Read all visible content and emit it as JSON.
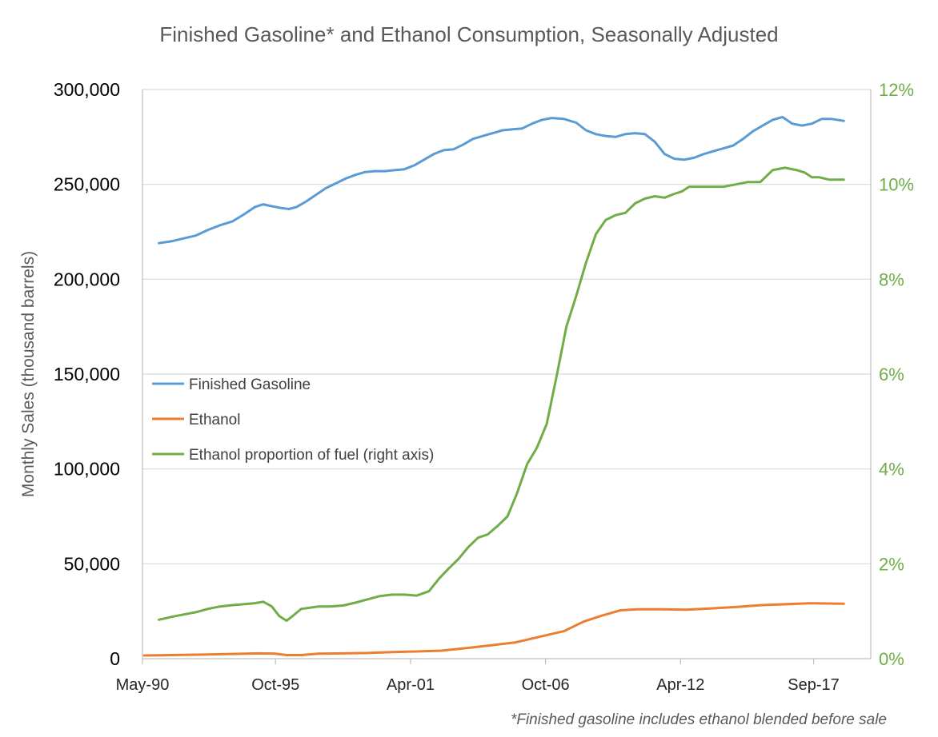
{
  "chart_data": {
    "type": "line",
    "title": "Finished Gasoline* and Ethanol Consumption, Seasonally Adjusted",
    "ylabel": "Monthly Sales (thousand barrels)",
    "y2label": "",
    "footnote": "*Finished gasoline includes ethanol blended before sale",
    "ylim": [
      0,
      300000
    ],
    "y2lim": [
      0,
      12
    ],
    "yticks": [
      "0",
      "50,000",
      "100,000",
      "150,000",
      "200,000",
      "250,000",
      "300,000"
    ],
    "y2ticks": [
      "0%",
      "2%",
      "4%",
      "6%",
      "8%",
      "10%",
      "12%"
    ],
    "xlim": [
      1990.33,
      2020.0
    ],
    "xticks": [
      {
        "label": "May-90",
        "x": 1990.33
      },
      {
        "label": "Oct-95",
        "x": 1995.75
      },
      {
        "label": "Apr-01",
        "x": 2001.25
      },
      {
        "label": "Oct-06",
        "x": 2006.75
      },
      {
        "label": "Apr-12",
        "x": 2012.25
      },
      {
        "label": "Sep-17",
        "x": 2017.67
      }
    ],
    "grid": true,
    "legend_position": "center-left",
    "colors": {
      "gasoline": "#5B9BD5",
      "ethanol": "#ED7D31",
      "proportion": "#70AD47",
      "grid": "#D9D9D9",
      "axis": "#BFBFBF"
    },
    "series": [
      {
        "name": "Finished Gasoline",
        "axis": "left",
        "x": [
          1991.0,
          1991.5,
          1992.0,
          1992.5,
          1993.0,
          1993.5,
          1994.0,
          1994.5,
          1994.9,
          1995.25,
          1995.6,
          1996.0,
          1996.3,
          1996.6,
          1997.0,
          1997.4,
          1997.8,
          1998.2,
          1998.6,
          1999.0,
          1999.4,
          1999.8,
          2000.2,
          2000.6,
          2001.0,
          2001.4,
          2001.8,
          2002.2,
          2002.6,
          2003.0,
          2003.4,
          2003.8,
          2004.2,
          2004.6,
          2005.0,
          2005.4,
          2005.8,
          2006.2,
          2006.6,
          2007.0,
          2007.5,
          2008.0,
          2008.4,
          2008.8,
          2009.2,
          2009.6,
          2010.0,
          2010.4,
          2010.8,
          2011.2,
          2011.6,
          2012.0,
          2012.4,
          2012.8,
          2013.2,
          2013.6,
          2014.0,
          2014.4,
          2014.8,
          2015.2,
          2015.6,
          2016.0,
          2016.4,
          2016.8,
          2017.2,
          2017.6,
          2018.0,
          2018.4,
          2018.9
        ],
        "values": [
          219000,
          220000,
          221500,
          223000,
          226000,
          228500,
          230500,
          234500,
          238000,
          239500,
          238500,
          237500,
          237000,
          238000,
          241000,
          244500,
          248000,
          250500,
          253000,
          255000,
          256500,
          257000,
          257000,
          257500,
          258000,
          260000,
          263000,
          266000,
          268000,
          268500,
          271000,
          274000,
          275500,
          277000,
          278500,
          279000,
          279500,
          282000,
          284000,
          285000,
          284500,
          282500,
          278500,
          276500,
          275500,
          275000,
          276500,
          277000,
          276500,
          272500,
          266000,
          263500,
          263000,
          264000,
          266000,
          267500,
          269000,
          270500,
          274000,
          278000,
          281000,
          284000,
          285500,
          282000,
          281000,
          282000,
          284500,
          284500,
          283500
        ]
      },
      {
        "name": "Ethanol",
        "axis": "left",
        "x": [
          1990.4,
          1991.0,
          1992.0,
          1993.0,
          1994.0,
          1995.0,
          1995.7,
          1996.2,
          1996.8,
          1997.5,
          1998.5,
          1999.5,
          2000.5,
          2001.5,
          2002.5,
          2003.5,
          2004.5,
          2005.5,
          2006.5,
          2007.5,
          2008.3,
          2009.0,
          2009.8,
          2010.5,
          2011.5,
          2012.5,
          2013.5,
          2014.5,
          2015.5,
          2016.5,
          2017.5,
          2018.9
        ],
        "values": [
          1700,
          1800,
          2000,
          2200,
          2500,
          2800,
          2700,
          1900,
          1900,
          2600,
          2800,
          3000,
          3500,
          3800,
          4200,
          5500,
          7000,
          8500,
          11500,
          14500,
          19500,
          22500,
          25500,
          26000,
          26000,
          25800,
          26500,
          27200,
          28200,
          28700,
          29200,
          29000
        ]
      },
      {
        "name": "Ethanol proportion of fuel (right axis)",
        "axis": "right",
        "x": [
          1991.0,
          1991.5,
          1992.0,
          1992.5,
          1993.0,
          1993.5,
          1994.0,
          1994.5,
          1994.9,
          1995.25,
          1995.6,
          1995.9,
          1996.2,
          1996.5,
          1996.8,
          1997.1,
          1997.5,
          1998.0,
          1998.5,
          1999.0,
          1999.5,
          2000.0,
          2000.5,
          2001.0,
          2001.5,
          2002.0,
          2002.4,
          2002.8,
          2003.2,
          2003.6,
          2004.0,
          2004.4,
          2004.8,
          2005.2,
          2005.6,
          2006.0,
          2006.4,
          2006.8,
          2007.2,
          2007.6,
          2008.0,
          2008.4,
          2008.8,
          2009.2,
          2009.6,
          2010.0,
          2010.4,
          2010.8,
          2011.2,
          2011.6,
          2012.0,
          2012.3,
          2012.6,
          2013.0,
          2013.5,
          2014.0,
          2014.5,
          2015.0,
          2015.5,
          2016.0,
          2016.5,
          2017.0,
          2017.3,
          2017.6,
          2017.9,
          2018.3,
          2018.9
        ],
        "values": [
          0.82,
          0.88,
          0.93,
          0.98,
          1.05,
          1.1,
          1.13,
          1.15,
          1.17,
          1.2,
          1.1,
          0.9,
          0.8,
          0.92,
          1.05,
          1.07,
          1.1,
          1.1,
          1.12,
          1.18,
          1.25,
          1.32,
          1.35,
          1.35,
          1.33,
          1.42,
          1.68,
          1.9,
          2.1,
          2.35,
          2.55,
          2.62,
          2.8,
          3.0,
          3.5,
          4.1,
          4.45,
          4.95,
          5.95,
          7.0,
          7.65,
          8.35,
          8.95,
          9.25,
          9.35,
          9.4,
          9.6,
          9.7,
          9.75,
          9.72,
          9.8,
          9.85,
          9.95,
          9.95,
          9.95,
          9.95,
          10.0,
          10.05,
          10.05,
          10.3,
          10.35,
          10.3,
          10.25,
          10.15,
          10.15,
          10.1,
          10.1
        ]
      }
    ]
  }
}
